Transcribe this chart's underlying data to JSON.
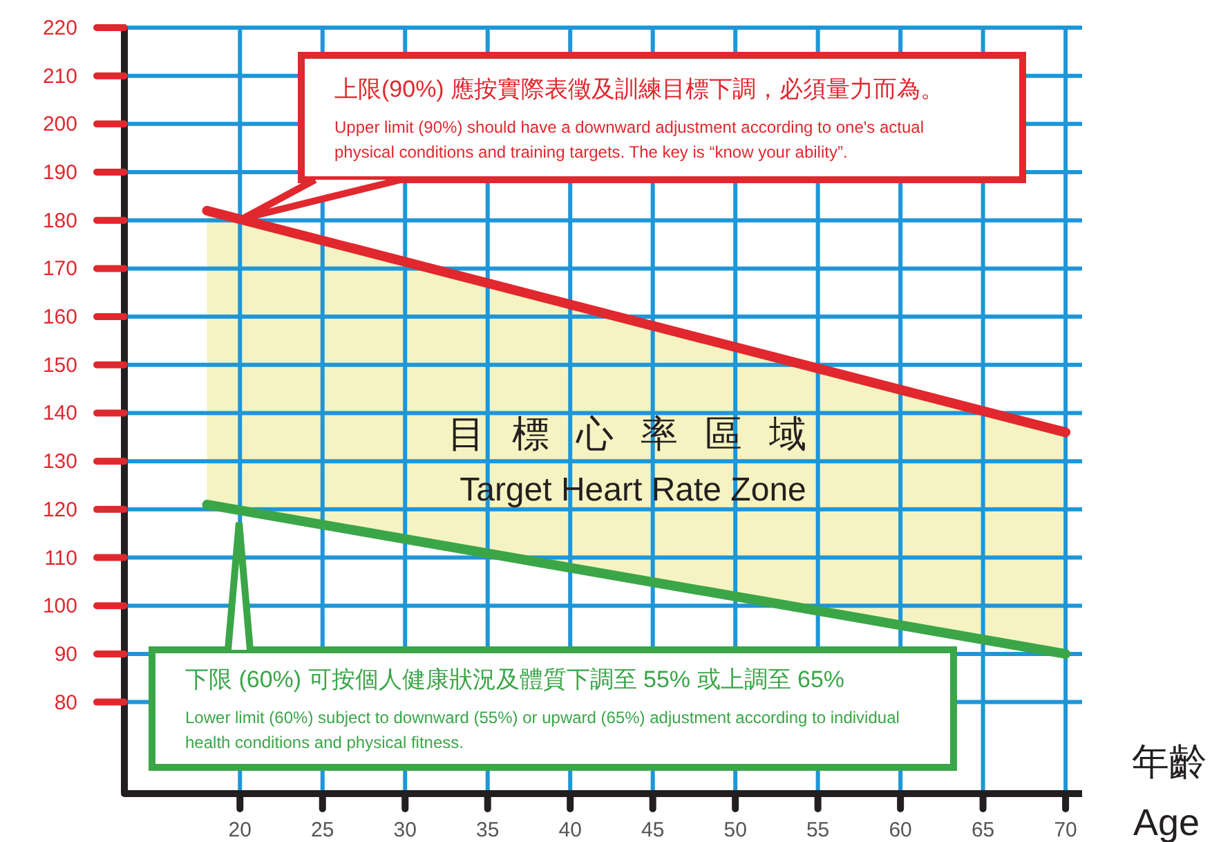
{
  "chart_data": {
    "type": "line",
    "xlabel": "年齡 Age",
    "x": [
      18,
      70
    ],
    "series": [
      {
        "color": "#e0282e",
        "values": [
          182,
          136
        ]
      },
      {
        "color": "#3aa648",
        "values": [
          121,
          90
        ]
      }
    ],
    "xlim": [
      13,
      71
    ],
    "ylim": [
      61,
      220
    ],
    "xticks": [
      20,
      25,
      30,
      35,
      40,
      45,
      50,
      55,
      60,
      65,
      70
    ],
    "yticks": [
      80,
      90,
      100,
      110,
      120,
      130,
      140,
      150,
      160,
      170,
      180,
      190,
      200,
      210,
      220
    ],
    "grid": true,
    "marker": "none",
    "line_style": "solid",
    "annotations": [
      "上限(90%) 應按實際表徵及訓練目標下調，必須量力而為。",
      "Upper limit (90%) should have a downward adjustment according to one's actual physical conditions and training targets. The key is “know your ability”.",
      "下限 (60%) 可按個人健康狀況及體質下調至 55% 或上調至 65%",
      "Lower limit (60%) subject to downward (55%) or upward (65%) adjustment according to individual health conditions and physical fitness.",
      "目 標 心 率 區 域",
      "Target Heart Rate Zone"
    ]
  }
}
